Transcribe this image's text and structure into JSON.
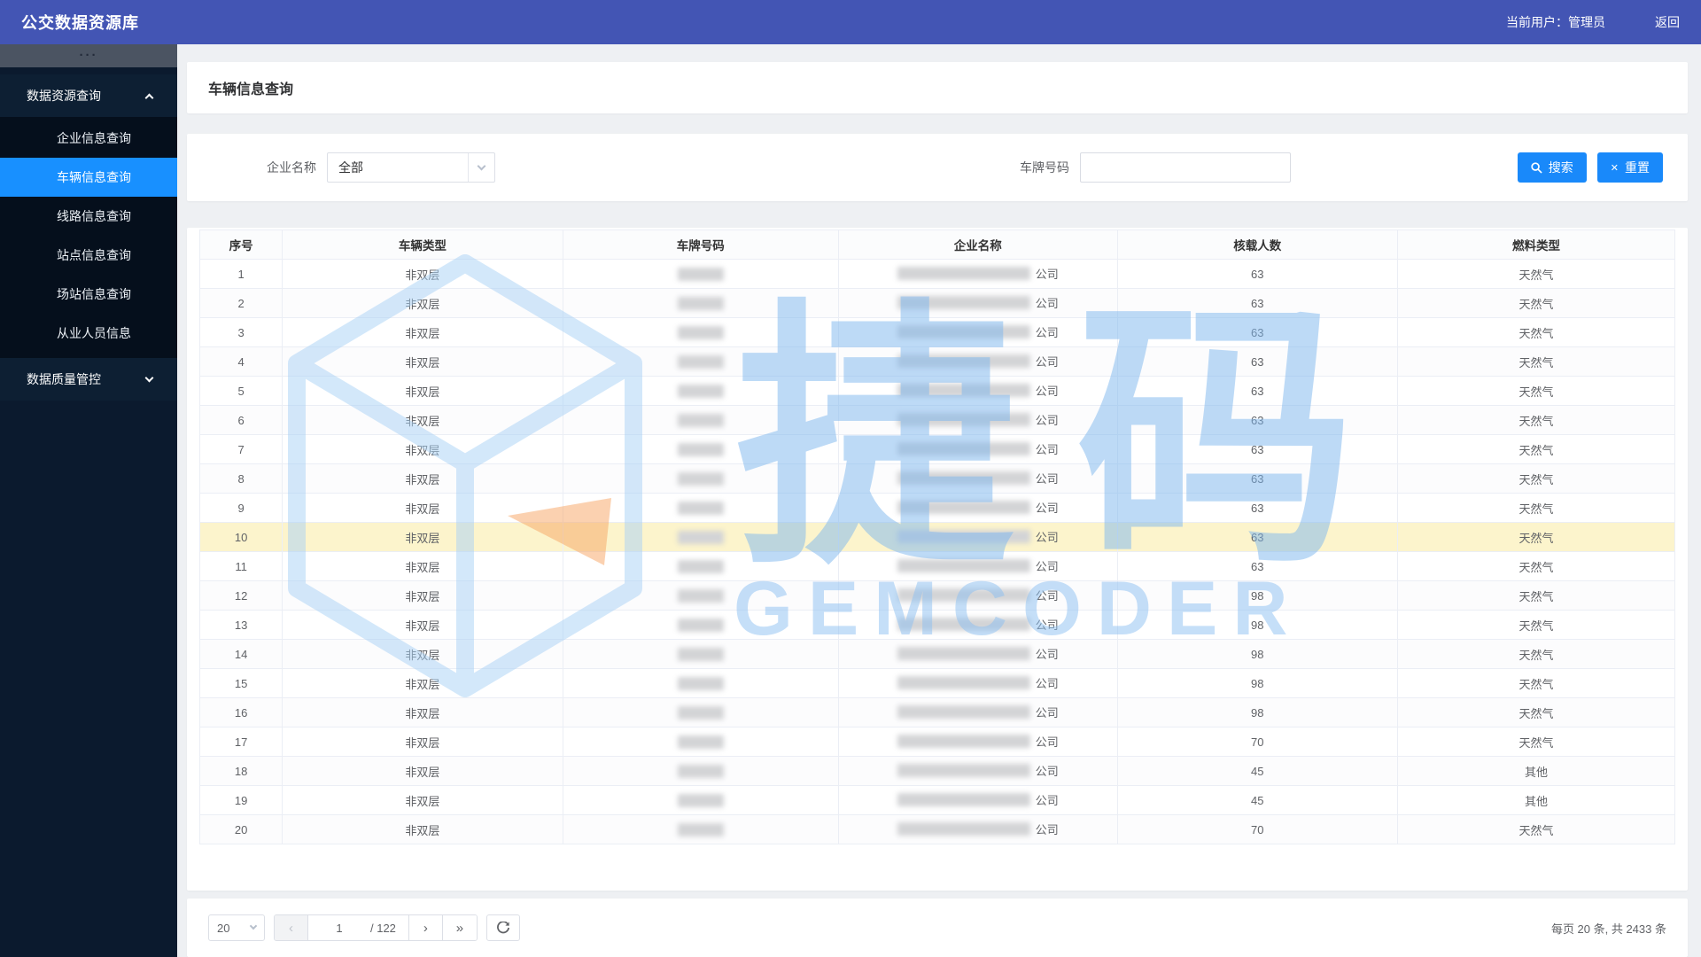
{
  "navbar": {
    "title": "公交数据资源库",
    "user_label": "当前用户：管理员",
    "back_label": "返回"
  },
  "sidebar": {
    "handle_dots": "···",
    "group1": {
      "label": "数据资源查询"
    },
    "items": [
      "企业信息查询",
      "车辆信息查询",
      "线路信息查询",
      "站点信息查询",
      "场站信息查询",
      "从业人员信息"
    ],
    "active_item": "车辆信息查询",
    "group2": {
      "label": "数据质量管控"
    }
  },
  "page": {
    "title": "车辆信息查询"
  },
  "filters": {
    "company_label": "企业名称",
    "company_value": "全部",
    "plate_label": "车牌号码",
    "plate_value": "",
    "search_label": "搜索",
    "reset_label": "重置"
  },
  "table": {
    "columns": [
      "序号",
      "车辆类型",
      "车牌号码",
      "企业名称",
      "核载人数",
      "燃料类型"
    ],
    "rows": [
      {
        "seq": 1,
        "type": "非双层",
        "company_suffix": "公司",
        "capacity": 63,
        "fuel": "天然气",
        "highlight": false
      },
      {
        "seq": 2,
        "type": "非双层",
        "company_suffix": "公司",
        "capacity": 63,
        "fuel": "天然气",
        "highlight": false
      },
      {
        "seq": 3,
        "type": "非双层",
        "company_suffix": "公司",
        "capacity": 63,
        "fuel": "天然气",
        "highlight": false
      },
      {
        "seq": 4,
        "type": "非双层",
        "company_suffix": "公司",
        "capacity": 63,
        "fuel": "天然气",
        "highlight": false
      },
      {
        "seq": 5,
        "type": "非双层",
        "company_suffix": "公司",
        "capacity": 63,
        "fuel": "天然气",
        "highlight": false
      },
      {
        "seq": 6,
        "type": "非双层",
        "company_suffix": "公司",
        "capacity": 63,
        "fuel": "天然气",
        "highlight": false
      },
      {
        "seq": 7,
        "type": "非双层",
        "company_suffix": "公司",
        "capacity": 63,
        "fuel": "天然气",
        "highlight": false
      },
      {
        "seq": 8,
        "type": "非双层",
        "company_suffix": "公司",
        "capacity": 63,
        "fuel": "天然气",
        "highlight": false
      },
      {
        "seq": 9,
        "type": "非双层",
        "company_suffix": "公司",
        "capacity": 63,
        "fuel": "天然气",
        "highlight": false
      },
      {
        "seq": 10,
        "type": "非双层",
        "company_suffix": "公司",
        "capacity": 63,
        "fuel": "天然气",
        "highlight": true
      },
      {
        "seq": 11,
        "type": "非双层",
        "company_suffix": "公司",
        "capacity": 63,
        "fuel": "天然气",
        "highlight": false
      },
      {
        "seq": 12,
        "type": "非双层",
        "company_suffix": "公司",
        "capacity": 98,
        "fuel": "天然气",
        "highlight": false
      },
      {
        "seq": 13,
        "type": "非双层",
        "company_suffix": "公司",
        "capacity": 98,
        "fuel": "天然气",
        "highlight": false
      },
      {
        "seq": 14,
        "type": "非双层",
        "company_suffix": "公司",
        "capacity": 98,
        "fuel": "天然气",
        "highlight": false
      },
      {
        "seq": 15,
        "type": "非双层",
        "company_suffix": "公司",
        "capacity": 98,
        "fuel": "天然气",
        "highlight": false
      },
      {
        "seq": 16,
        "type": "非双层",
        "company_suffix": "公司",
        "capacity": 98,
        "fuel": "天然气",
        "highlight": false
      },
      {
        "seq": 17,
        "type": "非双层",
        "company_suffix": "公司",
        "capacity": 70,
        "fuel": "天然气",
        "highlight": false
      },
      {
        "seq": 18,
        "type": "非双层",
        "company_suffix": "公司",
        "capacity": 45,
        "fuel": "其他",
        "highlight": false
      },
      {
        "seq": 19,
        "type": "非双层",
        "company_suffix": "公司",
        "capacity": 45,
        "fuel": "其他",
        "highlight": false
      },
      {
        "seq": 20,
        "type": "非双层",
        "company_suffix": "公司",
        "capacity": 70,
        "fuel": "天然气",
        "highlight": false
      }
    ]
  },
  "pagination": {
    "page_size": "20",
    "prev_glyph": "‹",
    "next_glyph": "›",
    "last_glyph": "»",
    "current": "1",
    "total": "/ 122",
    "summary": "每页 20 条, 共 2433 条"
  },
  "watermark": {
    "cn": "捷码",
    "en": "GEMCODER"
  },
  "icons": {
    "search": "magnifier",
    "reset": "✕",
    "refresh": "circular-arrow",
    "select_arrow": "chevron-down"
  },
  "colors": {
    "navbar": "#4355b4",
    "sidebar": "#0b1a2e",
    "active_menu": "#1890ff",
    "button": "#1989fa",
    "highlight_row": "#fcf4cc",
    "watermark": "#8cc0f2"
  }
}
